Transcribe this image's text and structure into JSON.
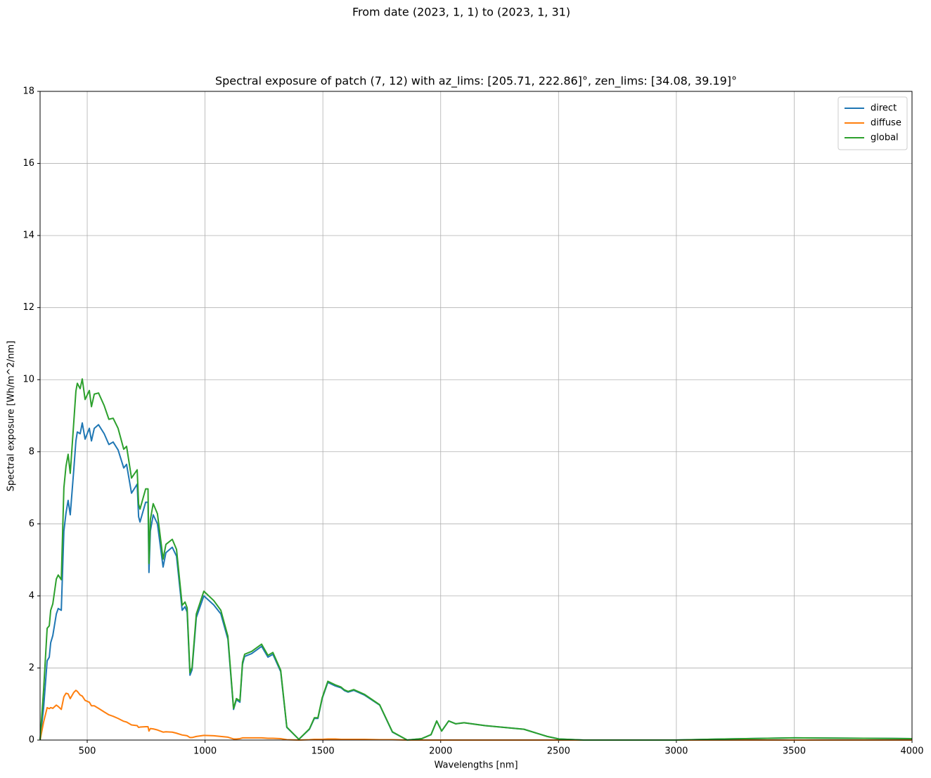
{
  "chart_data": {
    "type": "line",
    "suptitle": "From date (2023, 1, 1) to (2023, 1, 31)",
    "title": "Spectral exposure of patch (7, 12) with az_lims: [205.71, 222.86]°, zen_lims: [34.08, 39.19]°",
    "x_label": "Wavelengths [nm]",
    "y_label": "Spectral exposure [Wh/m^2/nm]",
    "x": [
      300,
      315,
      330,
      339,
      345,
      354,
      369,
      377,
      390,
      401,
      410,
      419,
      428,
      443,
      452,
      458,
      470,
      479,
      491,
      509,
      518,
      530,
      548,
      572,
      592,
      610,
      631,
      655,
      667,
      688,
      712,
      718,
      724,
      748,
      758,
      762,
      768,
      780,
      798,
      822,
      834,
      861,
      879,
      903,
      915,
      924,
      936,
      945,
      963,
      995,
      1037,
      1067,
      1097,
      1121,
      1133,
      1148,
      1159,
      1168,
      1198,
      1240,
      1267,
      1288,
      1321,
      1347,
      1398,
      1443,
      1464,
      1479,
      1497,
      1521,
      1553,
      1577,
      1592,
      1607,
      1631,
      1676,
      1741,
      1795,
      1858,
      1920,
      1959,
      1983,
      2004,
      2034,
      2064,
      2099,
      2189,
      2353,
      2452,
      2502,
      2606,
      2995,
      3203,
      3502,
      4000
    ],
    "series": [
      {
        "name": "direct",
        "color": "#1f77b4",
        "values": [
          0,
          0.9,
          2.2,
          2.3,
          2.7,
          2.9,
          3.5,
          3.65,
          3.6,
          5.8,
          6.3,
          6.65,
          6.25,
          7.5,
          8.3,
          8.55,
          8.5,
          8.8,
          8.35,
          8.65,
          8.3,
          8.65,
          8.75,
          8.5,
          8.2,
          8.27,
          8.05,
          7.55,
          7.65,
          6.85,
          7.1,
          6.2,
          6.05,
          6.6,
          6.6,
          4.65,
          5.8,
          6.25,
          6.0,
          4.8,
          5.2,
          5.35,
          5.1,
          3.6,
          3.7,
          3.55,
          1.8,
          1.95,
          3.4,
          4.0,
          3.75,
          3.5,
          2.8,
          0.85,
          1.12,
          1.05,
          2.1,
          2.32,
          2.4,
          2.6,
          2.3,
          2.38,
          1.9,
          0.35,
          0.02,
          0.3,
          0.6,
          0.6,
          1.15,
          1.6,
          1.5,
          1.45,
          1.37,
          1.33,
          1.38,
          1.25,
          0.97,
          0.22,
          0,
          0.04,
          0.15,
          0.53,
          0.25,
          0.53,
          0.45,
          0.48,
          0.4,
          0.3,
          0.1,
          0.03,
          0,
          0,
          0.03,
          0.06,
          0.04
        ]
      },
      {
        "name": "diffuse",
        "color": "#ff7f0e",
        "values": [
          0,
          0.5,
          0.9,
          0.87,
          0.9,
          0.88,
          0.97,
          0.93,
          0.85,
          1.2,
          1.3,
          1.28,
          1.15,
          1.32,
          1.38,
          1.35,
          1.25,
          1.22,
          1.1,
          1.05,
          0.95,
          0.95,
          0.88,
          0.78,
          0.7,
          0.66,
          0.6,
          0.52,
          0.5,
          0.42,
          0.4,
          0.35,
          0.36,
          0.37,
          0.37,
          0.25,
          0.32,
          0.31,
          0.28,
          0.22,
          0.23,
          0.22,
          0.19,
          0.14,
          0.13,
          0.12,
          0.07,
          0.07,
          0.1,
          0.13,
          0.12,
          0.1,
          0.08,
          0.03,
          0.03,
          0.04,
          0.06,
          0.06,
          0.06,
          0.06,
          0.05,
          0.05,
          0.04,
          0.01,
          0,
          0.01,
          0.02,
          0.02,
          0.02,
          0.03,
          0.03,
          0.02,
          0.02,
          0.02,
          0.02,
          0.02,
          0.01,
          0.01,
          0,
          0,
          0,
          0,
          0,
          0,
          0,
          0,
          0,
          0,
          0,
          0,
          0,
          0,
          0,
          0,
          0
        ]
      },
      {
        "name": "global",
        "color": "#2ca02c",
        "values": [
          0,
          1.4,
          3.1,
          3.17,
          3.6,
          3.78,
          4.47,
          4.58,
          4.45,
          7.0,
          7.6,
          7.93,
          7.4,
          8.82,
          9.68,
          9.9,
          9.75,
          10.02,
          9.45,
          9.7,
          9.25,
          9.6,
          9.63,
          9.28,
          8.9,
          8.93,
          8.65,
          8.07,
          8.15,
          7.27,
          7.5,
          6.55,
          6.41,
          6.97,
          6.97,
          4.9,
          6.12,
          6.56,
          6.28,
          5.02,
          5.43,
          5.57,
          5.29,
          3.74,
          3.83,
          3.67,
          1.87,
          2.02,
          3.5,
          4.13,
          3.87,
          3.6,
          2.88,
          0.88,
          1.15,
          1.09,
          2.16,
          2.38,
          2.46,
          2.66,
          2.35,
          2.43,
          1.94,
          0.36,
          0.02,
          0.31,
          0.62,
          0.62,
          1.17,
          1.63,
          1.53,
          1.47,
          1.39,
          1.35,
          1.4,
          1.27,
          0.98,
          0.23,
          0,
          0.04,
          0.15,
          0.53,
          0.25,
          0.53,
          0.45,
          0.48,
          0.4,
          0.3,
          0.1,
          0.03,
          0,
          0,
          0.03,
          0.06,
          0.04
        ]
      }
    ],
    "xlim": [
      300,
      4000
    ],
    "xticks": [
      500,
      1000,
      1500,
      2000,
      2500,
      3000,
      3500,
      4000
    ],
    "ylim": [
      0,
      18
    ],
    "yticks": [
      0,
      2,
      4,
      6,
      8,
      10,
      12,
      14,
      16,
      18
    ],
    "grid": true,
    "legend": "upper-right"
  }
}
